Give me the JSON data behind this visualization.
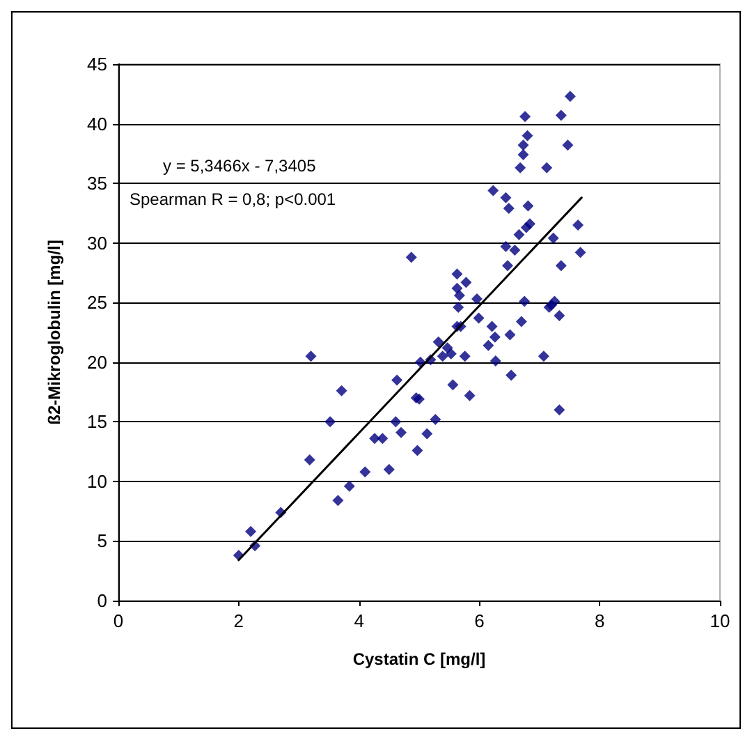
{
  "chart_data": {
    "type": "scatter",
    "xlabel": "Cystatin C [mg/l]",
    "ylabel": "ß2-Mikroglobulin [mg/l]",
    "xlim": [
      0,
      10
    ],
    "xticks": [
      0,
      2,
      4,
      6,
      8,
      10
    ],
    "ylim": [
      0,
      45
    ],
    "yticks": [
      0,
      5,
      10,
      15,
      20,
      25,
      30,
      35,
      40,
      45
    ],
    "grid": "y",
    "marker": "diamond",
    "annotations": [
      "y = 5,3466x - 7,3405",
      "Spearman R = 0,8; p<0.001"
    ],
    "series": [
      {
        "color": "#000080",
        "x": [
          2.0,
          2.2,
          2.27,
          2.7,
          3.18,
          3.2,
          3.52,
          3.65,
          3.71,
          3.84,
          4.1,
          4.26,
          4.39,
          4.5,
          4.61,
          4.63,
          4.7,
          4.95,
          5.0,
          4.97,
          5.02,
          5.13,
          5.19,
          5.27,
          5.32,
          5.39,
          5.47,
          5.53,
          5.56,
          5.63,
          5.63,
          5.65,
          5.67,
          5.69,
          5.76,
          5.78,
          5.84,
          5.96,
          5.99,
          6.15,
          6.21,
          6.26,
          6.27,
          6.51,
          6.53,
          6.7,
          6.75,
          7.07,
          7.16,
          7.2,
          7.25,
          7.33,
          7.33,
          4.87,
          5.63,
          6.23,
          6.44,
          6.49,
          6.44,
          6.47,
          6.59,
          6.66,
          6.78,
          6.81,
          6.84,
          6.68,
          6.73,
          6.73,
          6.8,
          6.76,
          7.12,
          7.23,
          7.36,
          7.36,
          7.47,
          7.51,
          7.64,
          7.68
        ],
        "values": [
          3.8,
          5.8,
          4.6,
          7.4,
          11.8,
          20.5,
          15.0,
          8.4,
          17.6,
          9.6,
          10.8,
          13.6,
          13.6,
          11.0,
          15.0,
          18.5,
          14.1,
          17.0,
          16.9,
          12.6,
          20.0,
          14.0,
          20.2,
          15.2,
          21.7,
          20.5,
          21.2,
          20.7,
          18.1,
          23.0,
          26.2,
          24.6,
          25.6,
          23.0,
          20.5,
          26.7,
          17.2,
          25.3,
          23.7,
          21.4,
          23.0,
          22.1,
          20.1,
          22.3,
          18.9,
          23.4,
          25.1,
          20.5,
          24.6,
          24.8,
          25.1,
          23.9,
          16.0,
          28.8,
          27.4,
          34.4,
          33.8,
          32.9,
          29.7,
          28.1,
          29.4,
          30.7,
          31.3,
          33.1,
          31.6,
          36.3,
          37.4,
          38.2,
          39.0,
          40.6,
          36.3,
          30.4,
          28.1,
          40.7,
          38.2,
          42.3,
          31.5,
          29.2
        ]
      },
      {
        "type": "line",
        "color": "#000000",
        "marker": "none",
        "line_style": "solid",
        "x": [
          2.0,
          7.7
        ],
        "values": [
          3.4,
          33.8
        ]
      }
    ]
  }
}
